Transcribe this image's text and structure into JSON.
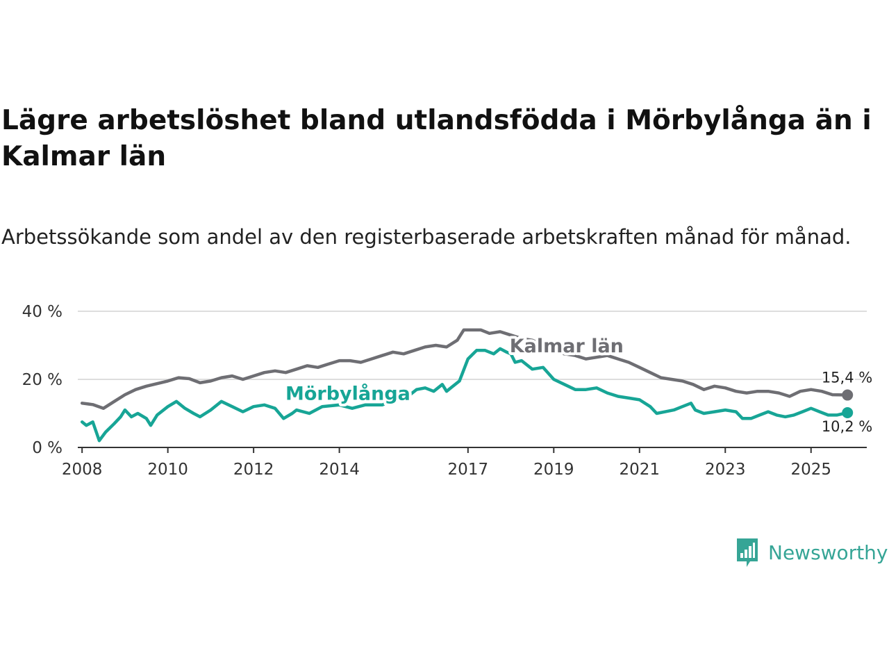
{
  "title": "Lägre arbetslöshet bland utlandsfödda i Mörbylånga än i Kalmar län",
  "subtitle": "Arbetssökande som andel av den registerbaserade arbetskraften månad för månad.",
  "brand": {
    "name": "Newsworthy"
  },
  "colors": {
    "kalmar": "#6e6e73",
    "morbylanga": "#17a596",
    "grid": "#dddddd",
    "axis": "#333333",
    "brand": "#36a596"
  },
  "chart_data": {
    "type": "line",
    "title": "Lägre arbetslöshet bland utlandsfödda i Mörbylånga än i Kalmar län",
    "xlabel": "",
    "ylabel": "",
    "xlim": [
      2007.9,
      2026.3
    ],
    "ylim": [
      0,
      40
    ],
    "y_ticks": [
      0,
      20,
      40
    ],
    "y_tick_labels": [
      "0 %",
      "20 %",
      "40 %"
    ],
    "x_ticks": [
      2008,
      2010,
      2012,
      2014,
      2017,
      2019,
      2021,
      2023,
      2025
    ],
    "x_tick_labels": [
      "2008",
      "2010",
      "2012",
      "2014",
      "2017",
      "2019",
      "2021",
      "2023",
      "2025"
    ],
    "grid": true,
    "series": [
      {
        "name": "Kalmar län",
        "color": "#6e6e73",
        "end_label": "15,4 %",
        "points": [
          [
            2008.0,
            13.0
          ],
          [
            2008.25,
            12.6
          ],
          [
            2008.5,
            11.5
          ],
          [
            2008.75,
            13.5
          ],
          [
            2009.0,
            15.5
          ],
          [
            2009.25,
            17.0
          ],
          [
            2009.5,
            18.0
          ],
          [
            2010.0,
            19.5
          ],
          [
            2010.25,
            20.5
          ],
          [
            2010.5,
            20.2
          ],
          [
            2010.75,
            19.0
          ],
          [
            2011.0,
            19.5
          ],
          [
            2011.25,
            20.5
          ],
          [
            2011.5,
            21.0
          ],
          [
            2011.75,
            20.0
          ],
          [
            2012.0,
            21.0
          ],
          [
            2012.25,
            22.0
          ],
          [
            2012.5,
            22.5
          ],
          [
            2012.75,
            22.0
          ],
          [
            2013.0,
            23.0
          ],
          [
            2013.25,
            24.0
          ],
          [
            2013.5,
            23.5
          ],
          [
            2013.75,
            24.5
          ],
          [
            2014.0,
            25.5
          ],
          [
            2014.25,
            25.5
          ],
          [
            2014.5,
            25.0
          ],
          [
            2014.75,
            26.0
          ],
          [
            2015.0,
            27.0
          ],
          [
            2015.25,
            28.0
          ],
          [
            2015.5,
            27.5
          ],
          [
            2015.75,
            28.5
          ],
          [
            2016.0,
            29.5
          ],
          [
            2016.25,
            30.0
          ],
          [
            2016.5,
            29.5
          ],
          [
            2016.75,
            31.5
          ],
          [
            2016.9,
            34.5
          ],
          [
            2017.1,
            34.5
          ],
          [
            2017.3,
            34.5
          ],
          [
            2017.5,
            33.5
          ],
          [
            2017.75,
            34.0
          ],
          [
            2018.0,
            33.0
          ],
          [
            2018.25,
            32.0
          ],
          [
            2018.5,
            31.5
          ],
          [
            2018.75,
            30.0
          ],
          [
            2019.0,
            28.5
          ],
          [
            2019.25,
            27.5
          ],
          [
            2019.5,
            27.0
          ],
          [
            2019.75,
            26.0
          ],
          [
            2020.0,
            26.5
          ],
          [
            2020.25,
            27.0
          ],
          [
            2020.5,
            26.0
          ],
          [
            2020.75,
            25.0
          ],
          [
            2021.0,
            23.5
          ],
          [
            2021.25,
            22.0
          ],
          [
            2021.5,
            20.5
          ],
          [
            2021.75,
            20.0
          ],
          [
            2022.0,
            19.5
          ],
          [
            2022.25,
            18.5
          ],
          [
            2022.5,
            17.0
          ],
          [
            2022.75,
            18.0
          ],
          [
            2023.0,
            17.5
          ],
          [
            2023.25,
            16.5
          ],
          [
            2023.5,
            16.0
          ],
          [
            2023.75,
            16.5
          ],
          [
            2024.0,
            16.5
          ],
          [
            2024.25,
            16.0
          ],
          [
            2024.5,
            15.0
          ],
          [
            2024.75,
            16.5
          ],
          [
            2025.0,
            17.0
          ],
          [
            2025.25,
            16.5
          ],
          [
            2025.5,
            15.5
          ],
          [
            2025.85,
            15.4
          ]
        ]
      },
      {
        "name": "Mörbylånga",
        "color": "#17a596",
        "end_label": "10,2 %",
        "points": [
          [
            2008.0,
            7.5
          ],
          [
            2008.1,
            6.5
          ],
          [
            2008.25,
            7.5
          ],
          [
            2008.4,
            2.0
          ],
          [
            2008.55,
            4.5
          ],
          [
            2008.75,
            7.0
          ],
          [
            2008.9,
            9.0
          ],
          [
            2009.0,
            11.0
          ],
          [
            2009.15,
            9.0
          ],
          [
            2009.3,
            10.0
          ],
          [
            2009.5,
            8.5
          ],
          [
            2009.6,
            6.5
          ],
          [
            2009.75,
            9.5
          ],
          [
            2010.0,
            12.0
          ],
          [
            2010.2,
            13.5
          ],
          [
            2010.4,
            11.5
          ],
          [
            2010.6,
            10.0
          ],
          [
            2010.75,
            9.0
          ],
          [
            2011.0,
            11.0
          ],
          [
            2011.25,
            13.5
          ],
          [
            2011.5,
            12.0
          ],
          [
            2011.75,
            10.5
          ],
          [
            2012.0,
            12.0
          ],
          [
            2012.25,
            12.5
          ],
          [
            2012.5,
            11.5
          ],
          [
            2012.7,
            8.5
          ],
          [
            2012.9,
            10.0
          ],
          [
            2013.0,
            11.0
          ],
          [
            2013.3,
            10.0
          ],
          [
            2013.6,
            12.0
          ],
          [
            2014.0,
            12.5
          ],
          [
            2014.3,
            11.5
          ],
          [
            2014.6,
            12.5
          ],
          [
            2015.0,
            12.5
          ],
          [
            2015.3,
            14.0
          ],
          [
            2015.6,
            15.0
          ],
          [
            2015.8,
            17.0
          ],
          [
            2016.0,
            17.5
          ],
          [
            2016.2,
            16.5
          ],
          [
            2016.4,
            18.5
          ],
          [
            2016.5,
            16.5
          ],
          [
            2016.6,
            17.5
          ],
          [
            2016.8,
            19.5
          ],
          [
            2017.0,
            26.0
          ],
          [
            2017.2,
            28.5
          ],
          [
            2017.4,
            28.5
          ],
          [
            2017.6,
            27.5
          ],
          [
            2017.75,
            29.0
          ],
          [
            2017.9,
            28.0
          ],
          [
            2018.0,
            27.5
          ],
          [
            2018.1,
            25.0
          ],
          [
            2018.25,
            25.5
          ],
          [
            2018.5,
            23.0
          ],
          [
            2018.75,
            23.5
          ],
          [
            2019.0,
            20.0
          ],
          [
            2019.25,
            18.5
          ],
          [
            2019.5,
            17.0
          ],
          [
            2019.75,
            17.0
          ],
          [
            2020.0,
            17.5
          ],
          [
            2020.25,
            16.0
          ],
          [
            2020.5,
            15.0
          ],
          [
            2020.75,
            14.5
          ],
          [
            2021.0,
            14.0
          ],
          [
            2021.25,
            12.0
          ],
          [
            2021.4,
            10.0
          ],
          [
            2021.6,
            10.5
          ],
          [
            2021.8,
            11.0
          ],
          [
            2022.0,
            12.0
          ],
          [
            2022.2,
            13.0
          ],
          [
            2022.3,
            11.0
          ],
          [
            2022.5,
            10.0
          ],
          [
            2022.75,
            10.5
          ],
          [
            2023.0,
            11.0
          ],
          [
            2023.25,
            10.5
          ],
          [
            2023.4,
            8.5
          ],
          [
            2023.6,
            8.5
          ],
          [
            2023.8,
            9.5
          ],
          [
            2024.0,
            10.5
          ],
          [
            2024.2,
            9.5
          ],
          [
            2024.4,
            9.0
          ],
          [
            2024.6,
            9.5
          ],
          [
            2024.8,
            10.5
          ],
          [
            2025.0,
            11.5
          ],
          [
            2025.2,
            10.5
          ],
          [
            2025.4,
            9.5
          ],
          [
            2025.6,
            9.5
          ],
          [
            2025.85,
            10.2
          ]
        ]
      }
    ],
    "annotations": [
      {
        "text": "Kalmar län",
        "series": "Kalmar län",
        "x": 2019.3,
        "y": 28.0
      },
      {
        "text": "Mörbylånga",
        "series": "Mörbylånga",
        "x": 2014.2,
        "y": 14.0
      }
    ]
  }
}
